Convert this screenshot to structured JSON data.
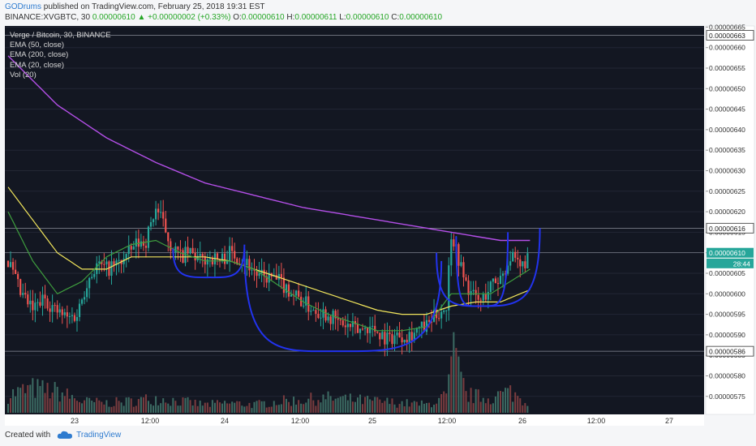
{
  "header": {
    "author": "GODrums",
    "published_text": "published on TradingView.com, February 25, 2018 19:31 EST",
    "symbol": "BINANCE:XVGBTC, 30",
    "last": "0.00000610",
    "change": "+0.00000002 (+0.33%)",
    "open_label": "O:",
    "open": "0.00000610",
    "high_label": "H:",
    "high": "0.00000611",
    "low_label": "L:",
    "low": "0.00000610",
    "close_label": "C:",
    "close": "0.00000610"
  },
  "legend": {
    "title": "Verge / Bitcoin, 30, BINANCE",
    "items": [
      "EMA (50, close)",
      "EMA (200, close)",
      "EMA (20, close)",
      "Vol (20)"
    ]
  },
  "footer": {
    "created_with": "Created with",
    "brand": "TradingView"
  },
  "colors": {
    "background": "#131722",
    "up": "#26a69a",
    "down": "#ef5350",
    "ema50": "#f2e65c",
    "ema200": "#b44fe8",
    "ema20": "#3e9d3e",
    "drawing": "#2233ee",
    "price_tag": "#26a69a"
  },
  "chart_data": {
    "type": "candlestick",
    "y_axis": {
      "ylim": [
        5.7e-06,
        6.66e-06
      ],
      "tick_labels": [
        "0.00000665",
        "0.00000660",
        "0.00000655",
        "0.00000650",
        "0.00000645",
        "0.00000640",
        "0.00000635",
        "0.00000630",
        "0.00000625",
        "0.00000620",
        "0.00000615",
        "0.00000610",
        "0.00000605",
        "0.00000600",
        "0.00000595",
        "0.00000590",
        "0.00000585",
        "0.00000580",
        "0.00000575"
      ],
      "tick_values": [
        665,
        660,
        655,
        650,
        645,
        640,
        635,
        630,
        625,
        620,
        615,
        610,
        605,
        600,
        595,
        590,
        585,
        580,
        575
      ]
    },
    "x_axis": {
      "tick_labels": [
        "23",
        "12:00",
        "24",
        "12:00",
        "25",
        "12:00",
        "26",
        "12:00",
        "27"
      ]
    },
    "price_tags": [
      {
        "label": "0.00000663",
        "value": 663
      },
      {
        "label": "0.00000616",
        "value": 616
      },
      {
        "label": "0.00000610",
        "value": 610
      },
      {
        "label": "28:44",
        "value": 608
      },
      {
        "label": "0.00000586",
        "value": 586
      }
    ],
    "horizontal_lines": [
      663,
      616,
      610,
      586
    ],
    "ohlc_units": "1e-8 BTC",
    "price_segments": [
      [
        0,
        608
      ],
      [
        5,
        600
      ],
      [
        10,
        596
      ],
      [
        15,
        599
      ],
      [
        19,
        596
      ],
      [
        24,
        594
      ],
      [
        28,
        595
      ],
      [
        32,
        603
      ],
      [
        36,
        607
      ],
      [
        40,
        606
      ],
      [
        44,
        607
      ],
      [
        48,
        609
      ],
      [
        52,
        612
      ],
      [
        56,
        613
      ],
      [
        60,
        621
      ],
      [
        63,
        617
      ],
      [
        66,
        612
      ],
      [
        70,
        609
      ],
      [
        74,
        610
      ],
      [
        78,
        608
      ],
      [
        82,
        609
      ],
      [
        86,
        608
      ],
      [
        90,
        610
      ],
      [
        94,
        609
      ],
      [
        98,
        607
      ],
      [
        102,
        604
      ],
      [
        106,
        604
      ],
      [
        110,
        603
      ],
      [
        114,
        601
      ],
      [
        118,
        599
      ],
      [
        122,
        597
      ],
      [
        126,
        596
      ],
      [
        130,
        595
      ],
      [
        134,
        593
      ],
      [
        138,
        592
      ],
      [
        142,
        591
      ],
      [
        146,
        592
      ],
      [
        150,
        591
      ],
      [
        154,
        589
      ],
      [
        158,
        590
      ],
      [
        162,
        590
      ],
      [
        166,
        591
      ],
      [
        170,
        592
      ],
      [
        174,
        595
      ],
      [
        178,
        597
      ],
      [
        180,
        615
      ],
      [
        182,
        611
      ],
      [
        185,
        604
      ],
      [
        188,
        600
      ],
      [
        192,
        598
      ],
      [
        196,
        602
      ],
      [
        200,
        604
      ],
      [
        204,
        609
      ],
      [
        208,
        606
      ],
      [
        212,
        610
      ]
    ],
    "ema200": [
      [
        0,
        658
      ],
      [
        20,
        646
      ],
      [
        40,
        638
      ],
      [
        60,
        632
      ],
      [
        80,
        627
      ],
      [
        100,
        624
      ],
      [
        120,
        621
      ],
      [
        140,
        619
      ],
      [
        160,
        617
      ],
      [
        180,
        615
      ],
      [
        200,
        613
      ],
      [
        212,
        613
      ]
    ],
    "ema50": [
      [
        0,
        626
      ],
      [
        10,
        618
      ],
      [
        20,
        610
      ],
      [
        30,
        606
      ],
      [
        40,
        606
      ],
      [
        50,
        609
      ],
      [
        60,
        609
      ],
      [
        70,
        609
      ],
      [
        80,
        609
      ],
      [
        90,
        608
      ],
      [
        100,
        606
      ],
      [
        110,
        604
      ],
      [
        120,
        602
      ],
      [
        130,
        600
      ],
      [
        140,
        598
      ],
      [
        150,
        596
      ],
      [
        160,
        595
      ],
      [
        170,
        595
      ],
      [
        180,
        597
      ],
      [
        190,
        598
      ],
      [
        200,
        598
      ],
      [
        212,
        601
      ]
    ],
    "ema20": [
      [
        0,
        620
      ],
      [
        10,
        608
      ],
      [
        20,
        600
      ],
      [
        30,
        603
      ],
      [
        40,
        609
      ],
      [
        50,
        612
      ],
      [
        60,
        613
      ],
      [
        70,
        610
      ],
      [
        80,
        608
      ],
      [
        90,
        608
      ],
      [
        100,
        606
      ],
      [
        110,
        602
      ],
      [
        120,
        598
      ],
      [
        130,
        595
      ],
      [
        140,
        593
      ],
      [
        150,
        591
      ],
      [
        160,
        591
      ],
      [
        170,
        592
      ],
      [
        180,
        600
      ],
      [
        188,
        600
      ],
      [
        196,
        600
      ],
      [
        212,
        606
      ]
    ],
    "volume_base": [
      [
        0,
        22
      ],
      [
        10,
        30
      ],
      [
        20,
        26
      ],
      [
        30,
        14
      ],
      [
        40,
        12
      ],
      [
        50,
        14
      ],
      [
        60,
        18
      ],
      [
        70,
        14
      ],
      [
        80,
        10
      ],
      [
        90,
        12
      ],
      [
        100,
        10
      ],
      [
        110,
        14
      ],
      [
        120,
        16
      ],
      [
        130,
        18
      ],
      [
        140,
        16
      ],
      [
        150,
        14
      ],
      [
        160,
        12
      ],
      [
        170,
        10
      ],
      [
        178,
        20
      ],
      [
        181,
        70
      ],
      [
        186,
        22
      ],
      [
        195,
        18
      ],
      [
        204,
        26
      ],
      [
        212,
        10
      ]
    ],
    "drawings": [
      {
        "type": "arc",
        "name": "small-cup-left",
        "from": [
          67,
          611
        ],
        "bottom": [
          82,
          604
        ],
        "to": [
          96,
          612
        ]
      },
      {
        "type": "arc",
        "name": "large-cup",
        "from": [
          96,
          611
        ],
        "bottom": [
          132,
          586
        ],
        "to": [
          176,
          608
        ]
      },
      {
        "type": "arc",
        "name": "cup-right",
        "from": [
          174,
          610
        ],
        "bottom": [
          193,
          597
        ],
        "to": [
          203,
          615
        ]
      },
      {
        "type": "arc",
        "name": "handle",
        "from": [
          182,
          614
        ],
        "bottom": [
          190,
          597
        ],
        "to": [
          216,
          616
        ]
      }
    ]
  }
}
